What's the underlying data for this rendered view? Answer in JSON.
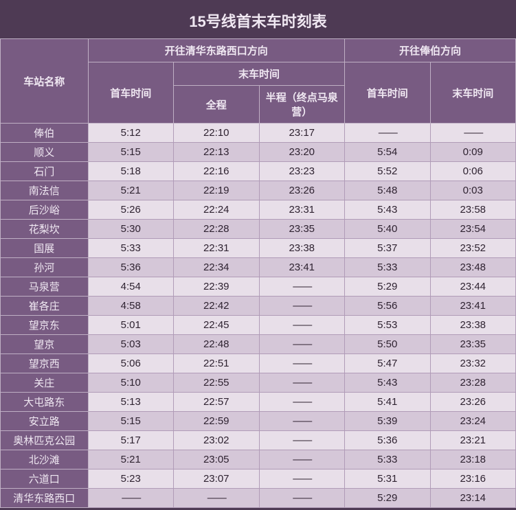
{
  "title": "15号线首末车时刻表",
  "header": {
    "station_col": "车站名称",
    "dir1": "开往清华东路西口方向",
    "dir2": "开往俸伯方向",
    "first_time": "首车时间",
    "last_time": "末车时间",
    "full": "全程",
    "half": "半程（终点马泉营）"
  },
  "dash": "——",
  "rows": [
    {
      "station": "俸伯",
      "d1_first": "5:12",
      "d1_full": "22:10",
      "d1_half": "23:17",
      "d2_first": "——",
      "d2_last": "——"
    },
    {
      "station": "顺义",
      "d1_first": "5:15",
      "d1_full": "22:13",
      "d1_half": "23:20",
      "d2_first": "5:54",
      "d2_last": "0:09"
    },
    {
      "station": "石门",
      "d1_first": "5:18",
      "d1_full": "22:16",
      "d1_half": "23:23",
      "d2_first": "5:52",
      "d2_last": "0:06"
    },
    {
      "station": "南法信",
      "d1_first": "5:21",
      "d1_full": "22:19",
      "d1_half": "23:26",
      "d2_first": "5:48",
      "d2_last": "0:03"
    },
    {
      "station": "后沙峪",
      "d1_first": "5:26",
      "d1_full": "22:24",
      "d1_half": "23:31",
      "d2_first": "5:43",
      "d2_last": "23:58"
    },
    {
      "station": "花梨坎",
      "d1_first": "5:30",
      "d1_full": "22:28",
      "d1_half": "23:35",
      "d2_first": "5:40",
      "d2_last": "23:54"
    },
    {
      "station": "国展",
      "d1_first": "5:33",
      "d1_full": "22:31",
      "d1_half": "23:38",
      "d2_first": "5:37",
      "d2_last": "23:52"
    },
    {
      "station": "孙河",
      "d1_first": "5:36",
      "d1_full": "22:34",
      "d1_half": "23:41",
      "d2_first": "5:33",
      "d2_last": "23:48"
    },
    {
      "station": "马泉营",
      "d1_first": "4:54",
      "d1_full": "22:39",
      "d1_half": "——",
      "d2_first": "5:29",
      "d2_last": "23:44"
    },
    {
      "station": "崔各庄",
      "d1_first": "4:58",
      "d1_full": "22:42",
      "d1_half": "——",
      "d2_first": "5:56",
      "d2_last": "23:41"
    },
    {
      "station": "望京东",
      "d1_first": "5:01",
      "d1_full": "22:45",
      "d1_half": "——",
      "d2_first": "5:53",
      "d2_last": "23:38"
    },
    {
      "station": "望京",
      "d1_first": "5:03",
      "d1_full": "22:48",
      "d1_half": "——",
      "d2_first": "5:50",
      "d2_last": "23:35"
    },
    {
      "station": "望京西",
      "d1_first": "5:06",
      "d1_full": "22:51",
      "d1_half": "——",
      "d2_first": "5:47",
      "d2_last": "23:32"
    },
    {
      "station": "关庄",
      "d1_first": "5:10",
      "d1_full": "22:55",
      "d1_half": "——",
      "d2_first": "5:43",
      "d2_last": "23:28"
    },
    {
      "station": "大屯路东",
      "d1_first": "5:13",
      "d1_full": "22:57",
      "d1_half": "——",
      "d2_first": "5:41",
      "d2_last": "23:26"
    },
    {
      "station": "安立路",
      "d1_first": "5:15",
      "d1_full": "22:59",
      "d1_half": "——",
      "d2_first": "5:39",
      "d2_last": "23:24"
    },
    {
      "station": "奥林匹克公园",
      "d1_first": "5:17",
      "d1_full": "23:02",
      "d1_half": "——",
      "d2_first": "5:36",
      "d2_last": "23:21"
    },
    {
      "station": "北沙滩",
      "d1_first": "5:21",
      "d1_full": "23:05",
      "d1_half": "——",
      "d2_first": "5:33",
      "d2_last": "23:18"
    },
    {
      "station": "六道口",
      "d1_first": "5:23",
      "d1_full": "23:07",
      "d1_half": "——",
      "d2_first": "5:31",
      "d2_last": "23:16"
    },
    {
      "station": "清华东路西口",
      "d1_first": "——",
      "d1_full": "——",
      "d1_half": "——",
      "d2_first": "5:29",
      "d2_last": "23:14"
    }
  ]
}
